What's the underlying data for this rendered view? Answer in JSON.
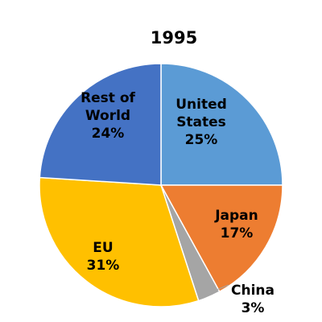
{
  "chart_data": {
    "type": "pie",
    "title": "1995",
    "slices": [
      {
        "label_lines": [
          "United",
          "States"
        ],
        "pct_label": "25%",
        "value": 25,
        "color": "#5B9BD5"
      },
      {
        "label_lines": [
          "Japan"
        ],
        "pct_label": "17%",
        "value": 17,
        "color": "#ED7D31"
      },
      {
        "label_lines": [
          "China"
        ],
        "pct_label": "3%",
        "value": 3,
        "color": "#A5A5A5"
      },
      {
        "label_lines": [
          "EU"
        ],
        "pct_label": "31%",
        "value": 31,
        "color": "#FFC000"
      },
      {
        "label_lines": [
          "Rest of",
          "World"
        ],
        "pct_label": "24%",
        "value": 24,
        "color": "#4472C4"
      }
    ],
    "start_angle_deg": 0,
    "direction": "clockwise",
    "legend": "none",
    "slice_border_color": "#FFFFFF"
  }
}
